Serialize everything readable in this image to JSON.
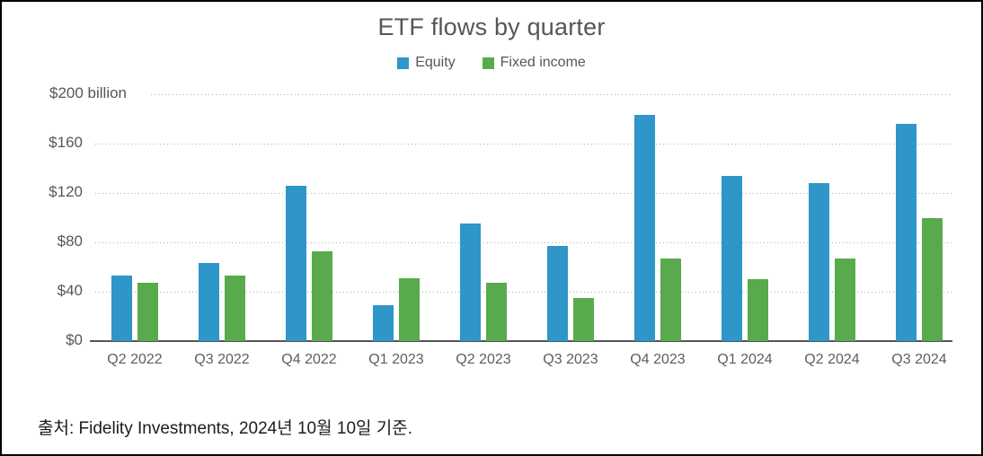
{
  "title": "ETF flows by quarter",
  "legend": {
    "items": [
      {
        "label": "Equity",
        "color": "#2E96C8"
      },
      {
        "label": "Fixed income",
        "color": "#58AA4D"
      }
    ]
  },
  "footer": {
    "source_text": "출처: Fidelity Investments, 2024년 10월 10일 기준."
  },
  "chart_data": {
    "type": "bar",
    "title": "ETF flows by quarter",
    "categories": [
      "Q2 2022",
      "Q3 2022",
      "Q4 2022",
      "Q1 2023",
      "Q2 2023",
      "Q3 2023",
      "Q4 2023",
      "Q1 2024",
      "Q2 2024",
      "Q3 2024"
    ],
    "series": [
      {
        "name": "Equity",
        "color": "#2E96C8",
        "values": [
          53,
          63,
          126,
          29,
          95,
          77,
          183,
          134,
          128,
          176
        ]
      },
      {
        "name": "Fixed income",
        "color": "#58AA4D",
        "values": [
          47,
          53,
          73,
          51,
          47,
          35,
          67,
          50,
          67,
          100
        ]
      }
    ],
    "xlabel": "",
    "ylabel": "$ billion",
    "ylim": [
      0,
      200
    ],
    "y_ticks": [
      {
        "value": 200,
        "label": "$200 billion"
      },
      {
        "value": 160,
        "label": "$160"
      },
      {
        "value": 120,
        "label": "$120"
      },
      {
        "value": 80,
        "label": "$80"
      },
      {
        "value": 40,
        "label": "$40"
      },
      {
        "value": 0,
        "label": "$0"
      }
    ],
    "grid": "horizontal-dotted",
    "legend_position": "top-center"
  }
}
